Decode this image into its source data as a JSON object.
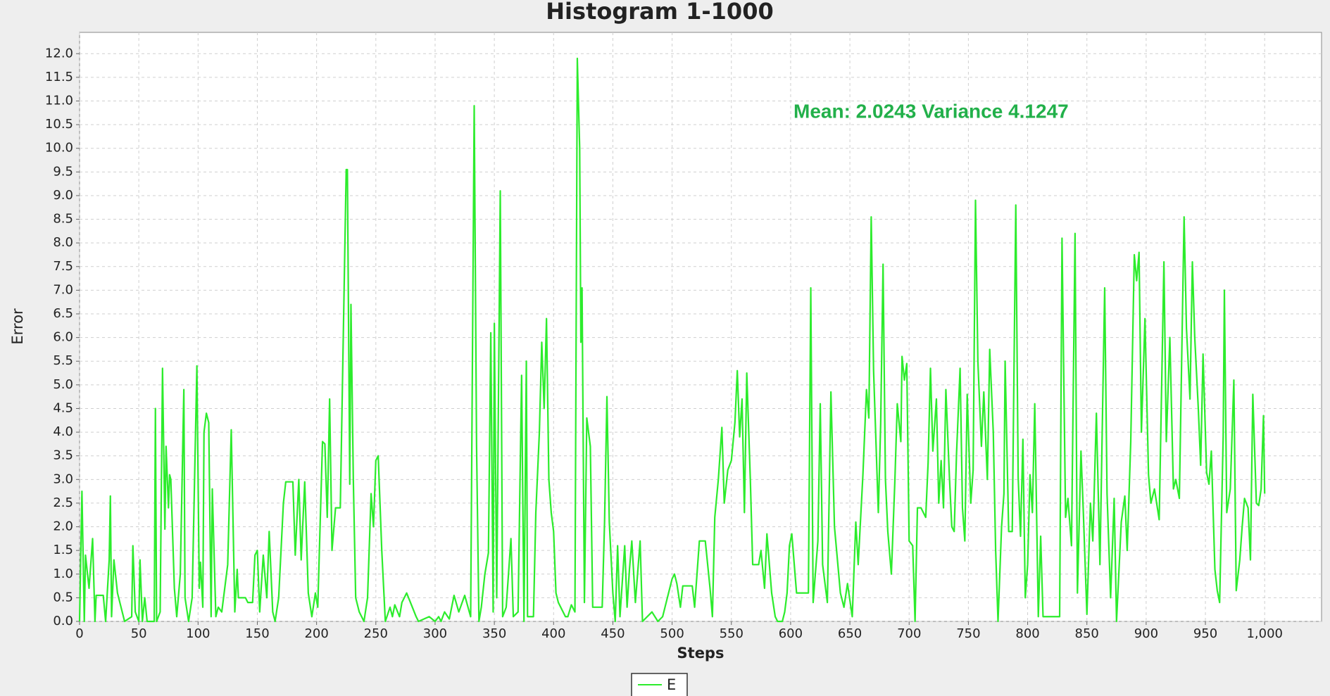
{
  "chart_data": {
    "type": "line",
    "title": "Histogram 1-1000",
    "x_label": "Steps",
    "y_label": "Error",
    "annotation": "Mean:  2.0243 Variance 4.1247",
    "xlim": [
      0,
      1048
    ],
    "ylim": [
      0,
      12.45
    ],
    "grid": true,
    "legend": "bottom",
    "xticks": [
      0,
      50,
      100,
      150,
      200,
      250,
      300,
      350,
      400,
      450,
      500,
      550,
      600,
      650,
      700,
      750,
      800,
      850,
      900,
      950,
      {
        "value": 1000,
        "label": "1,000"
      }
    ],
    "yticks": [
      {
        "value": 0,
        "label": "0.0"
      },
      0.5,
      {
        "value": 1,
        "label": "1.0"
      },
      1.5,
      {
        "value": 2,
        "label": "2.0"
      },
      2.5,
      {
        "value": 3,
        "label": "3.0"
      },
      3.5,
      {
        "value": 4,
        "label": "4.0"
      },
      4.5,
      {
        "value": 5,
        "label": "5.0"
      },
      5.5,
      {
        "value": 6,
        "label": "6.0"
      },
      6.5,
      {
        "value": 7,
        "label": "7.0"
      },
      7.5,
      {
        "value": 8,
        "label": "8.0"
      },
      8.5,
      {
        "value": 9,
        "label": "9.0"
      },
      9.5,
      {
        "value": 10,
        "label": "10.0"
      },
      10.5,
      {
        "value": 11,
        "label": "11.0"
      },
      11.5,
      {
        "value": 12,
        "label": "12.0"
      }
    ],
    "x": [
      0,
      2,
      4,
      5,
      8,
      11,
      13,
      14,
      20,
      22,
      25,
      26,
      27,
      29,
      32,
      35,
      38,
      44,
      45,
      47,
      50,
      51,
      53,
      55,
      57,
      63,
      64,
      65,
      68,
      70,
      72,
      73,
      75,
      76,
      77,
      80,
      82,
      85,
      88,
      89,
      92,
      95,
      99,
      101,
      102,
      104,
      105,
      107,
      109,
      111,
      112,
      115,
      117,
      120,
      125,
      128,
      131,
      133,
      134,
      140,
      142,
      146,
      148,
      150,
      152,
      155,
      158,
      160,
      163,
      165,
      168,
      172,
      174,
      180,
      182,
      185,
      187,
      190,
      193,
      196,
      199,
      201,
      205,
      207,
      209,
      211,
      213,
      216,
      220,
      225,
      226,
      228,
      229,
      231,
      233,
      236,
      240,
      243,
      246,
      248,
      250,
      252,
      255,
      258,
      262,
      264,
      266,
      270,
      272,
      276,
      280,
      284,
      286,
      295,
      300,
      303,
      305,
      308,
      312,
      316,
      320,
      325,
      330,
      333,
      335,
      337,
      339,
      342,
      345,
      347,
      349,
      350,
      352,
      355,
      357,
      360,
      364,
      366,
      370,
      373,
      375,
      377,
      378,
      383,
      385,
      388,
      390,
      392,
      394,
      396,
      398,
      400,
      402,
      404,
      406,
      410,
      412,
      415,
      418,
      420,
      422,
      423,
      424,
      426,
      428,
      431,
      433,
      441,
      443,
      445,
      447,
      450,
      452,
      454,
      456,
      460,
      462,
      464,
      466,
      469,
      473,
      475,
      483,
      488,
      492,
      496,
      500,
      502,
      504,
      507,
      509,
      517,
      519,
      523,
      528,
      532,
      534,
      536,
      539,
      542,
      544,
      547,
      550,
      553,
      555,
      557,
      559,
      561,
      563,
      566,
      568,
      573,
      575,
      578,
      580,
      584,
      587,
      589,
      593,
      595,
      597,
      599,
      601,
      605,
      610,
      615,
      617,
      619,
      623,
      625,
      627,
      631,
      634,
      637,
      642,
      645,
      648,
      652,
      655,
      657,
      661,
      664,
      666,
      668,
      670,
      674,
      676,
      678,
      680,
      682,
      685,
      688,
      690,
      693,
      694,
      696,
      698,
      700,
      703,
      705,
      707,
      710,
      714,
      716,
      718,
      720,
      723,
      725,
      727,
      729,
      731,
      734,
      736,
      738,
      740,
      743,
      745,
      747,
      749,
      752,
      754,
      756,
      758,
      761,
      763,
      766,
      768,
      771,
      773,
      775,
      778,
      780,
      781,
      784,
      787,
      790,
      792,
      794,
      796,
      798,
      800,
      802,
      804,
      806,
      809,
      811,
      813,
      827,
      829,
      832,
      834,
      837,
      840,
      842,
      845,
      847,
      850,
      853,
      855,
      858,
      861,
      865,
      867,
      870,
      873,
      875,
      879,
      882,
      884,
      887,
      890,
      892,
      894,
      896,
      899,
      902,
      904,
      907,
      911,
      915,
      917,
      920,
      923,
      925,
      928,
      932,
      934,
      937,
      939,
      941,
      944,
      946,
      948,
      951,
      953,
      955,
      958,
      960,
      962,
      965,
      966,
      968,
      971,
      974,
      976,
      979,
      981,
      983,
      986,
      988,
      990,
      993,
      995,
      997,
      999,
      1000
    ],
    "series": [
      {
        "name": "E",
        "color": "#2cec2c",
        "values": [
          0,
          2.75,
          0,
          1.4,
          0.7,
          1.75,
          0,
          0.55,
          0.55,
          0,
          1.3,
          2.65,
          0.1,
          1.3,
          0.6,
          0.3,
          0,
          0.1,
          1.6,
          0.2,
          0,
          1.3,
          0,
          0.5,
          0,
          0,
          4.5,
          0,
          0.2,
          5.35,
          1.95,
          3.7,
          2.4,
          3.1,
          3,
          0.7,
          0.1,
          1,
          4.9,
          0.5,
          0,
          0.5,
          5.4,
          0.7,
          1.25,
          0.3,
          4,
          4.4,
          4.2,
          0.1,
          2.8,
          0.1,
          0.3,
          0.2,
          1.2,
          4.05,
          0.2,
          1.1,
          0.5,
          0.5,
          0.4,
          0.4,
          1.4,
          1.5,
          0.2,
          1.4,
          0.5,
          1.9,
          0.2,
          0,
          0.5,
          2.5,
          2.95,
          2.95,
          1.4,
          3,
          1.3,
          2.95,
          0.6,
          0.1,
          0.6,
          0.3,
          3.8,
          3.75,
          2.2,
          4.7,
          1.5,
          2.4,
          2.4,
          9.55,
          9.55,
          2.9,
          6.7,
          3,
          0.5,
          0.2,
          0,
          0.5,
          2.7,
          2,
          3.4,
          3.5,
          1.5,
          0,
          0.3,
          0.1,
          0.35,
          0.1,
          0.4,
          0.6,
          0.35,
          0.1,
          0,
          0.1,
          0,
          0.1,
          0,
          0.2,
          0.05,
          0.55,
          0.2,
          0.55,
          0.1,
          10.9,
          3.7,
          0,
          0.3,
          1,
          1.45,
          6.1,
          0.2,
          6.3,
          0.5,
          9.1,
          0.1,
          0.3,
          1.75,
          0.1,
          0.2,
          5.2,
          0,
          5.5,
          0.1,
          0.1,
          2.3,
          4,
          5.9,
          4.5,
          6.4,
          3,
          2.3,
          1.9,
          0.6,
          0.4,
          0.3,
          0.1,
          0.1,
          0.35,
          0.2,
          11.9,
          10,
          5.9,
          7.05,
          0.4,
          4.3,
          3.7,
          0.3,
          0.3,
          2.1,
          4.75,
          2.1,
          0.6,
          0,
          1.6,
          0.1,
          1.6,
          0.3,
          1.1,
          1.7,
          0.4,
          1.7,
          0,
          0.2,
          0,
          0.1,
          0.5,
          0.9,
          1,
          0.8,
          0.3,
          0.75,
          0.75,
          0.3,
          1.7,
          1.7,
          0.7,
          0.1,
          2.2,
          3,
          4.1,
          2.5,
          3.2,
          3.4,
          4.2,
          5.3,
          3.9,
          4.7,
          2.3,
          5.25,
          3,
          1.2,
          1.2,
          1.5,
          0.7,
          1.85,
          0.6,
          0.1,
          0,
          0,
          0.2,
          0.6,
          1.6,
          1.85,
          0.6,
          0.6,
          0.6,
          7.05,
          0.4,
          1.7,
          4.6,
          1.2,
          0.4,
          4.85,
          2,
          0.6,
          0.3,
          0.8,
          0.1,
          2.1,
          1.2,
          3.1,
          4.9,
          4.3,
          8.55,
          5.3,
          2.3,
          4.2,
          7.55,
          3,
          1.9,
          1,
          3,
          4.6,
          3.8,
          5.6,
          5.1,
          5.45,
          1.7,
          1.6,
          0,
          2.4,
          2.4,
          2.2,
          3.35,
          5.35,
          3.6,
          4.7,
          2.5,
          3.4,
          2.4,
          4.9,
          3.05,
          2,
          1.9,
          3.55,
          5.35,
          2.4,
          1.7,
          4.8,
          2.5,
          3.2,
          8.9,
          5.5,
          3.7,
          4.85,
          3,
          5.75,
          4,
          1.5,
          0,
          2,
          2.7,
          5.5,
          1.9,
          1.9,
          8.8,
          3.05,
          1.8,
          3.85,
          0.5,
          1.2,
          3.1,
          2.3,
          4.6,
          0.1,
          1.8,
          0.1,
          0.1,
          8.1,
          2.2,
          2.6,
          1.6,
          8.2,
          0.6,
          3.6,
          2.3,
          0.15,
          2.5,
          1.7,
          4.4,
          1.2,
          7.05,
          2.7,
          0.5,
          2.6,
          0,
          2.1,
          2.65,
          1.5,
          3.8,
          7.75,
          7.2,
          7.8,
          4,
          6.4,
          3.1,
          2.5,
          2.8,
          2.15,
          7.6,
          3.8,
          6,
          2.8,
          3,
          2.6,
          8.55,
          6.2,
          4.7,
          7.6,
          6,
          4.5,
          3.3,
          5.65,
          3.15,
          2.9,
          3.6,
          1.1,
          0.65,
          0.4,
          3.9,
          7,
          2.3,
          2.8,
          5.1,
          0.65,
          1.3,
          2,
          2.6,
          2.4,
          1.3,
          4.8,
          2.5,
          2.45,
          2.8,
          4.35,
          2.7
        ]
      }
    ]
  }
}
